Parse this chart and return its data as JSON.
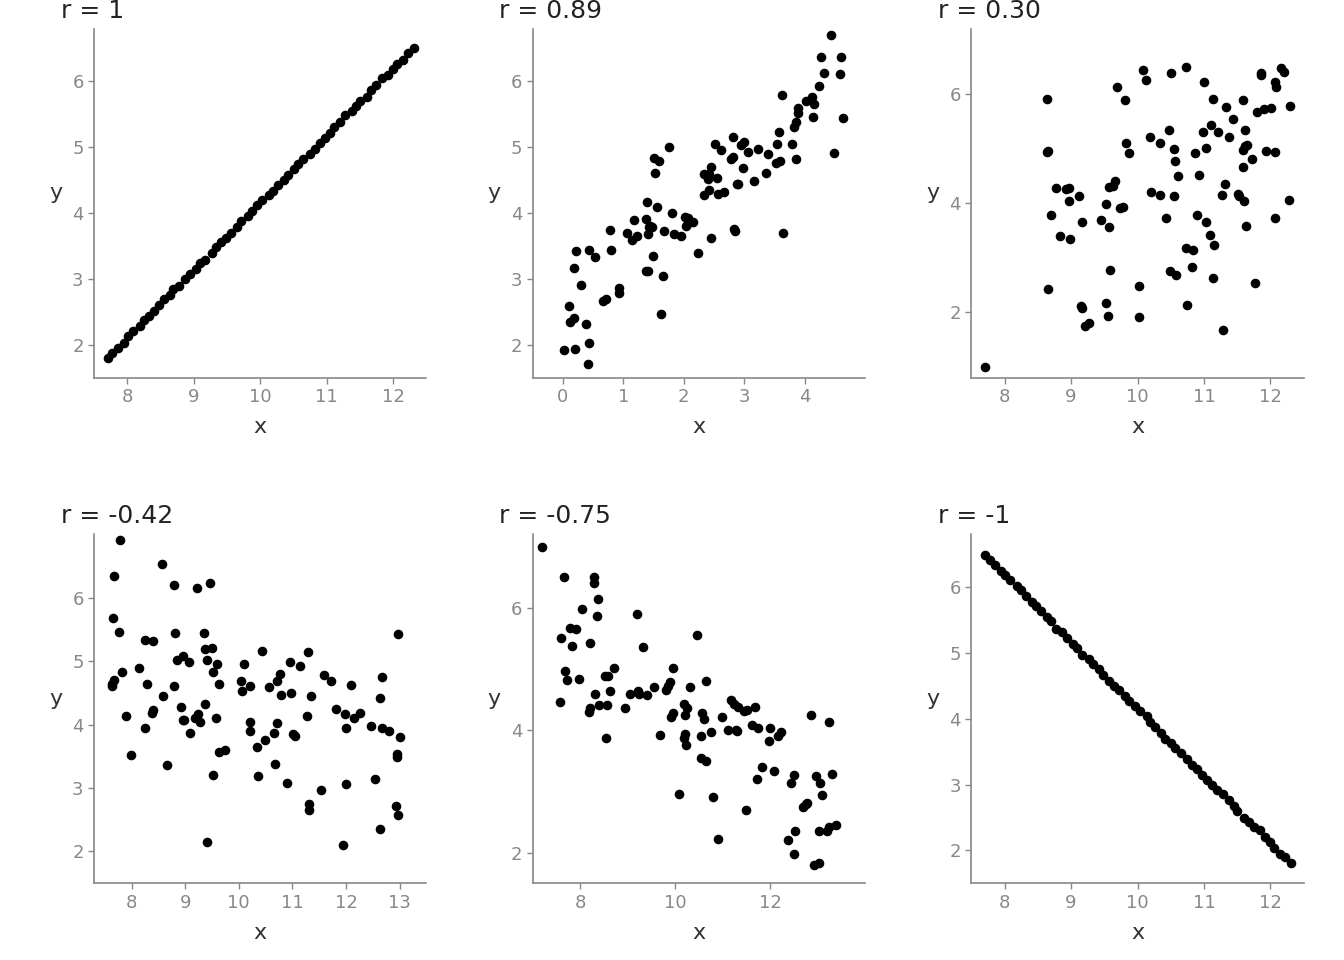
{
  "panels": [
    {
      "r_label": "r = 1",
      "x_ticks": [
        8,
        9,
        10,
        11,
        12
      ],
      "y_ticks": [
        2,
        3,
        4,
        5,
        6
      ],
      "xlim": [
        7.5,
        12.5
      ],
      "ylim": [
        1.5,
        6.8
      ]
    },
    {
      "r_label": "r = 0.89",
      "x_ticks": [
        0,
        1,
        2,
        3,
        4
      ],
      "y_ticks": [
        2,
        3,
        4,
        5,
        6
      ],
      "xlim": [
        -0.5,
        5.0
      ],
      "ylim": [
        1.5,
        6.8
      ]
    },
    {
      "r_label": "r = 0.30",
      "x_ticks": [
        8,
        9,
        10,
        11,
        12
      ],
      "y_ticks": [
        2,
        4,
        6
      ],
      "xlim": [
        7.5,
        12.5
      ],
      "ylim": [
        0.8,
        7.2
      ]
    },
    {
      "r_label": "r = -0.42",
      "x_ticks": [
        8,
        9,
        10,
        11,
        12,
        13
      ],
      "y_ticks": [
        2,
        3,
        4,
        5,
        6
      ],
      "xlim": [
        7.3,
        13.5
      ],
      "ylim": [
        1.5,
        7.0
      ]
    },
    {
      "r_label": "r = -0.75",
      "x_ticks": [
        8,
        10,
        12
      ],
      "y_ticks": [
        2,
        4,
        6
      ],
      "xlim": [
        7.0,
        14.0
      ],
      "ylim": [
        1.5,
        7.2
      ]
    },
    {
      "r_label": "r = -1",
      "x_ticks": [
        8,
        9,
        10,
        11,
        12
      ],
      "y_ticks": [
        2,
        3,
        4,
        5,
        6
      ],
      "xlim": [
        7.5,
        12.5
      ],
      "ylim": [
        1.5,
        6.8
      ]
    }
  ],
  "marker_color": "#000000",
  "marker_size": 35,
  "alpha": 1.0,
  "title_fontsize": 18,
  "axis_label_fontsize": 16,
  "tick_fontsize": 13,
  "background_color": "#ffffff",
  "spine_color": "#888888",
  "tick_color": "#888888"
}
